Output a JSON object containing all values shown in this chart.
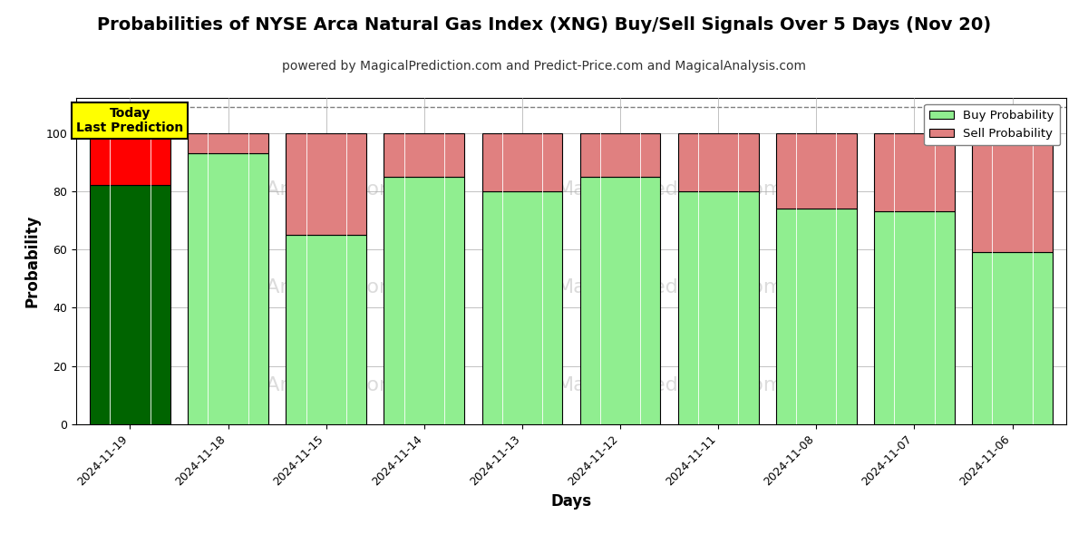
{
  "title": "Probabilities of NYSE Arca Natural Gas Index (XNG) Buy/Sell Signals Over 5 Days (Nov 20)",
  "subtitle": "powered by MagicalPrediction.com and Predict-Price.com and MagicalAnalysis.com",
  "xlabel": "Days",
  "ylabel": "Probability",
  "categories": [
    "2024-11-19",
    "2024-11-18",
    "2024-11-15",
    "2024-11-14",
    "2024-11-13",
    "2024-11-12",
    "2024-11-11",
    "2024-11-08",
    "2024-11-07",
    "2024-11-06"
  ],
  "buy_values": [
    82,
    93,
    65,
    85,
    80,
    85,
    80,
    74,
    73,
    59
  ],
  "sell_values": [
    18,
    7,
    35,
    15,
    20,
    15,
    20,
    26,
    27,
    41
  ],
  "today_buy_color": "#006400",
  "today_sell_color": "#FF0000",
  "buy_color": "#90EE90",
  "sell_color": "#E08080",
  "bar_edge_color": "#000000",
  "ylim": [
    0,
    112
  ],
  "yticks": [
    0,
    20,
    40,
    60,
    80,
    100
  ],
  "dashed_line_y": 109,
  "legend_buy_label": "Buy Probability",
  "legend_sell_label": "Sell Probability",
  "today_label_line1": "Today",
  "today_label_line2": "Last Prediction",
  "background_color": "#ffffff",
  "grid_color": "#aaaaaa",
  "title_fontsize": 14,
  "subtitle_fontsize": 10,
  "axis_label_fontsize": 12,
  "tick_fontsize": 9,
  "bar_width": 0.82
}
